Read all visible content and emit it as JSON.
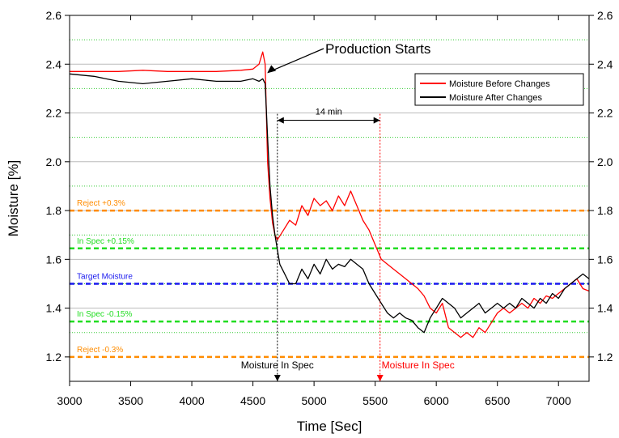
{
  "chart_data": {
    "type": "line",
    "title": "",
    "xlabel": "Time [Sec]",
    "ylabel": "Moisture [%]",
    "xlim": [
      3000,
      7250
    ],
    "ylim": [
      1.1,
      2.6
    ],
    "x_ticks": [
      3000,
      3500,
      4000,
      4500,
      5000,
      5500,
      6000,
      6500,
      7000
    ],
    "y_ticks": [
      1.2,
      1.4,
      1.6,
      1.8,
      2.0,
      2.2,
      2.4,
      2.6
    ],
    "y_tick_labels": [
      "1.2",
      "1.4",
      "1.6",
      "1.8",
      "2.0",
      "2.2",
      "2.4",
      "2.6"
    ],
    "right_axis": true,
    "grid": "major solid gray, minor dotted green",
    "legend_position": "top-right",
    "series": [
      {
        "name": "Moisture Before Changes",
        "color": "#ff0000",
        "x": [
          3000,
          3200,
          3400,
          3600,
          3800,
          4000,
          4200,
          4400,
          4500,
          4550,
          4580,
          4600,
          4610,
          4620,
          4640,
          4660,
          4680,
          4700,
          4750,
          4800,
          4850,
          4900,
          4950,
          5000,
          5050,
          5100,
          5150,
          5200,
          5250,
          5300,
          5350,
          5400,
          5450,
          5500,
          5550,
          5600,
          5650,
          5700,
          5750,
          5800,
          5850,
          5900,
          5950,
          6000,
          6050,
          6100,
          6150,
          6200,
          6250,
          6300,
          6350,
          6400,
          6450,
          6500,
          6550,
          6600,
          6650,
          6700,
          6750,
          6800,
          6850,
          6900,
          6950,
          7000,
          7050,
          7100,
          7150,
          7200,
          7250
        ],
        "y": [
          2.37,
          2.37,
          2.37,
          2.375,
          2.37,
          2.37,
          2.37,
          2.375,
          2.38,
          2.4,
          2.45,
          2.4,
          2.2,
          2.0,
          1.85,
          1.75,
          1.7,
          1.68,
          1.72,
          1.76,
          1.74,
          1.82,
          1.78,
          1.85,
          1.82,
          1.84,
          1.8,
          1.86,
          1.82,
          1.88,
          1.82,
          1.76,
          1.72,
          1.66,
          1.6,
          1.58,
          1.56,
          1.54,
          1.52,
          1.5,
          1.48,
          1.45,
          1.4,
          1.38,
          1.42,
          1.32,
          1.3,
          1.28,
          1.3,
          1.28,
          1.32,
          1.3,
          1.34,
          1.38,
          1.4,
          1.38,
          1.4,
          1.42,
          1.4,
          1.44,
          1.42,
          1.45,
          1.44,
          1.46,
          1.48,
          1.5,
          1.52,
          1.48,
          1.47
        ]
      },
      {
        "name": "Moisture After Changes",
        "color": "#000000",
        "x": [
          3000,
          3200,
          3400,
          3600,
          3800,
          4000,
          4200,
          4400,
          4500,
          4550,
          4580,
          4600,
          4620,
          4640,
          4660,
          4680,
          4700,
          4720,
          4750,
          4800,
          4850,
          4900,
          4950,
          5000,
          5050,
          5100,
          5150,
          5200,
          5250,
          5300,
          5350,
          5400,
          5450,
          5500,
          5550,
          5600,
          5650,
          5700,
          5750,
          5800,
          5850,
          5900,
          5950,
          6000,
          6050,
          6100,
          6150,
          6200,
          6250,
          6300,
          6350,
          6400,
          6450,
          6500,
          6550,
          6600,
          6650,
          6700,
          6750,
          6800,
          6850,
          6900,
          6950,
          7000,
          7050,
          7100,
          7150,
          7200,
          7250
        ],
        "y": [
          2.36,
          2.35,
          2.33,
          2.32,
          2.33,
          2.34,
          2.33,
          2.33,
          2.34,
          2.33,
          2.34,
          2.32,
          2.1,
          1.9,
          1.78,
          1.7,
          1.64,
          1.58,
          1.55,
          1.5,
          1.5,
          1.56,
          1.52,
          1.58,
          1.54,
          1.6,
          1.56,
          1.58,
          1.57,
          1.6,
          1.58,
          1.56,
          1.5,
          1.46,
          1.42,
          1.38,
          1.36,
          1.38,
          1.36,
          1.35,
          1.32,
          1.3,
          1.36,
          1.4,
          1.44,
          1.42,
          1.4,
          1.36,
          1.38,
          1.4,
          1.42,
          1.38,
          1.4,
          1.42,
          1.4,
          1.42,
          1.4,
          1.44,
          1.42,
          1.4,
          1.44,
          1.42,
          1.46,
          1.44,
          1.48,
          1.5,
          1.52,
          1.54,
          1.52
        ]
      }
    ],
    "reference_lines": [
      {
        "label": "Reject +0.3%",
        "y": 1.8,
        "color": "#ff8c00"
      },
      {
        "label": "In Spec +0.15%",
        "y": 1.645,
        "color": "#22dd22"
      },
      {
        "label": "Target Moisture",
        "y": 1.5,
        "color": "#1a1aee"
      },
      {
        "label": "In Spec -0.15%",
        "y": 1.345,
        "color": "#22dd22"
      },
      {
        "label": "Reject -0.3%",
        "y": 1.2,
        "color": "#ff8c00"
      }
    ],
    "annotations": {
      "production": {
        "label": "Production Starts",
        "x": 4610,
        "y": 2.36
      },
      "interval": {
        "label": "14 min",
        "x_start": 4700,
        "x_end": 5540,
        "y": 2.17
      },
      "spec_black": {
        "label": "Moisture In Spec",
        "x": 4700,
        "color": "#000000"
      },
      "spec_red": {
        "label": "Moisture In Spec",
        "x": 5540,
        "color": "#ff0000"
      }
    }
  }
}
